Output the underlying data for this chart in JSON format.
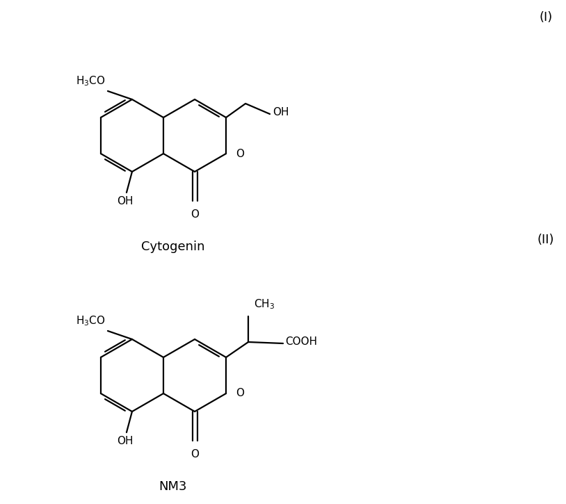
{
  "background_color": "#ffffff",
  "line_color": "#000000",
  "line_width": 1.6,
  "font_size_label": 13,
  "font_size_roman": 13,
  "font_size_atom": 11,
  "label1": "Cytogenin",
  "label2": "NM3",
  "roman1": "(I)",
  "roman2": "(II)"
}
